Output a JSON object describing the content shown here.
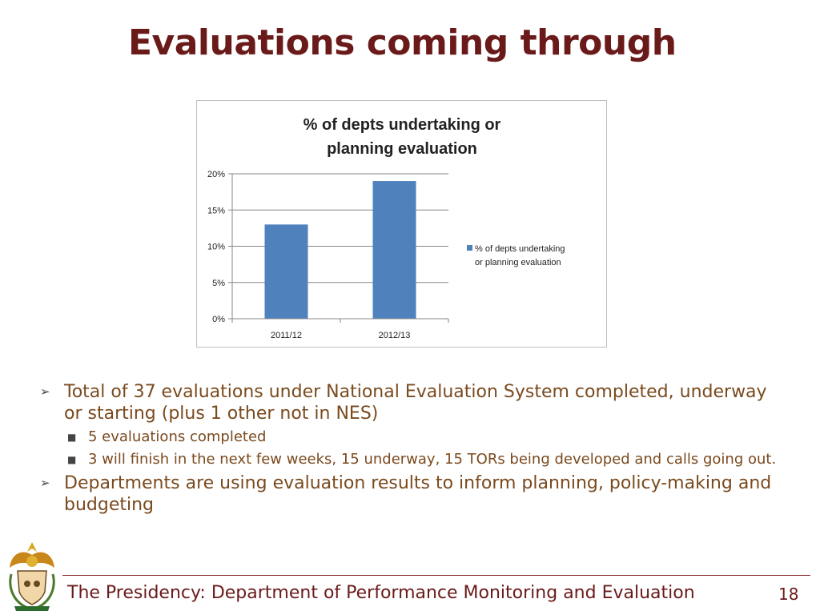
{
  "slide": {
    "title": "Evaluations coming through",
    "bullets": [
      {
        "text": "Total of 37 evaluations under National Evaluation System completed, underway or starting (plus 1 other not in NES)",
        "sub": [
          "5 evaluations completed",
          "3 will finish in the next few weeks, 15 underway, 15 TORs being developed and calls going out."
        ]
      },
      {
        "text": "Departments are using evaluation results to inform planning, policy-making and budgeting",
        "sub": []
      }
    ],
    "footer": "The Presidency: Department of Performance Monitoring and Evaluation",
    "page_number": "18",
    "logo_icon": "coat-of-arms-icon"
  },
  "colors": {
    "title": "#6b1a1a",
    "body_text": "#7a4a1e",
    "bar": "#4f81bd",
    "gridline": "#868686"
  },
  "chart_data": {
    "type": "bar",
    "title": "% of depts undertaking or planning evaluation",
    "categories": [
      "2011/12",
      "2012/13"
    ],
    "series": [
      {
        "name": "% of depts undertaking or planning evaluation",
        "values": [
          13,
          19
        ]
      }
    ],
    "y_ticks": [
      "0%",
      "5%",
      "10%",
      "15%",
      "20%"
    ],
    "ylim": [
      0,
      20
    ],
    "xlabel": "",
    "ylabel": "",
    "grid": true,
    "legend_position": "right"
  }
}
